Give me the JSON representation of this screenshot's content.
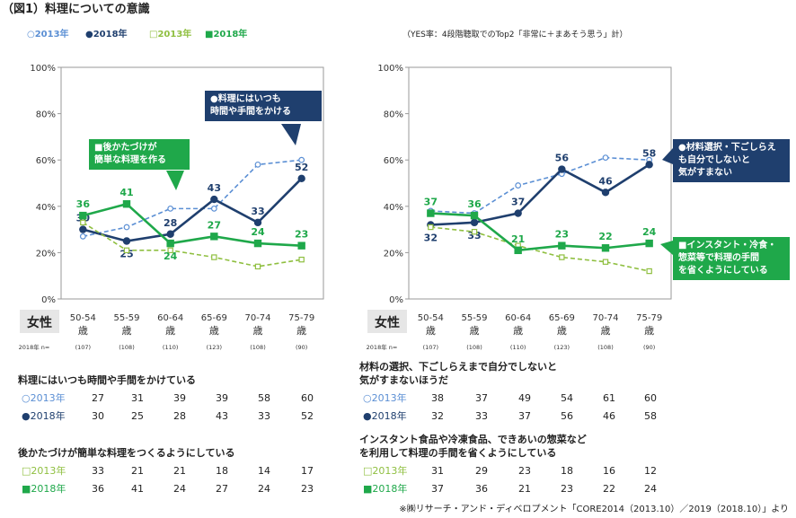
{
  "figure_title": "（図1）料理についての意識",
  "note_right": "（YES率：4段階聴取でのTop2「非常に＋まあそう思う」計）",
  "legend": [
    {
      "label": "○2013年",
      "color": "#5b8fd4",
      "style": "dashed-open"
    },
    {
      "label": "●2018年",
      "color": "#1f3f6e",
      "style": "solid-filled"
    },
    {
      "label": "□2013年",
      "color": "#8fbf40",
      "style": "dashed-open"
    },
    {
      "label": "■2018年",
      "color": "#1fa84a",
      "style": "solid-filled"
    }
  ],
  "colors": {
    "blue13": "#5b8fd4",
    "navy18": "#1f3f6e",
    "lime13": "#8fbf40",
    "green18": "#1fa84a"
  },
  "row_label": "女性",
  "n_label": "2018年 n=",
  "chart_data": [
    {
      "type": "line",
      "categories": [
        "50-54\n歳",
        "55-59\n歳",
        "60-64\n歳",
        "65-69\n歳",
        "70-74\n歳",
        "75-79\n歳"
      ],
      "n": [
        "(107)",
        "(108)",
        "(110)",
        "(123)",
        "(108)",
        "(90)"
      ],
      "ylim": [
        0,
        100
      ],
      "yticks": [
        "0%",
        "20%",
        "40%",
        "60%",
        "80%",
        "100%"
      ],
      "series": [
        {
          "name": "料理にはいつも時間や手間をかけている 2013年",
          "values": [
            27,
            31,
            39,
            39,
            58,
            60
          ]
        },
        {
          "name": "料理にはいつも時間や手間をかけている 2018年",
          "values": [
            30,
            25,
            28,
            43,
            33,
            52
          ]
        },
        {
          "name": "後かたづけが簡単な料理をつくるようにしている 2013年",
          "values": [
            33,
            21,
            21,
            18,
            14,
            17
          ]
        },
        {
          "name": "後かたづけが簡単な料理をつくるようにしている 2018年",
          "values": [
            36,
            41,
            24,
            27,
            24,
            23
          ]
        }
      ],
      "callouts": [
        {
          "text": "●料理にはいつも\n時間や手間をかける",
          "color": "navy"
        },
        {
          "text": "■後かたづけが\n簡単な料理を作る",
          "color": "green"
        }
      ]
    },
    {
      "type": "line",
      "categories": [
        "50-54\n歳",
        "55-59\n歳",
        "60-64\n歳",
        "65-69\n歳",
        "70-74\n歳",
        "75-79\n歳"
      ],
      "n": [
        "(107)",
        "(108)",
        "(110)",
        "(123)",
        "(108)",
        "(90)"
      ],
      "ylim": [
        0,
        100
      ],
      "yticks": [
        "0%",
        "20%",
        "40%",
        "60%",
        "80%",
        "100%"
      ],
      "series": [
        {
          "name": "材料の選択、下ごしらえまで自分でしないと気がすまないほうだ 2013年",
          "values": [
            38,
            37,
            49,
            54,
            61,
            60
          ]
        },
        {
          "name": "材料の選択、下ごしらえまで自分でしないと気がすまないほうだ 2018年",
          "values": [
            32,
            33,
            37,
            56,
            46,
            58
          ]
        },
        {
          "name": "インスタント食品や冷凍食品、できあいの惣菜などを利用して料理の手間を省くようにしている 2013年",
          "values": [
            31,
            29,
            23,
            18,
            16,
            12
          ]
        },
        {
          "name": "インスタント食品や冷凍食品、できあいの惣菜などを利用して料理の手間を省くようにしている 2018年",
          "values": [
            37,
            36,
            21,
            23,
            22,
            24
          ]
        }
      ],
      "callouts": [
        {
          "text": "●材料選択・下ごしらえ\nも自分でしないと\n気がすまない",
          "color": "navy"
        },
        {
          "text": "■インスタント・冷食・\n惣菜等で料理の手間\nを省くようにしている",
          "color": "green"
        }
      ]
    }
  ],
  "tables": [
    {
      "title": "料理にはいつも時間や手間をかけている",
      "rows": [
        {
          "label": "○2013年",
          "values": [
            "27",
            "31",
            "39",
            "39",
            "58",
            "60"
          ]
        },
        {
          "label": "●2018年",
          "values": [
            "30",
            "25",
            "28",
            "43",
            "33",
            "52"
          ]
        }
      ]
    },
    {
      "title": "後かたづけが簡単な料理をつくるようにしている",
      "rows": [
        {
          "label": "□2013年",
          "values": [
            "33",
            "21",
            "21",
            "18",
            "14",
            "17"
          ]
        },
        {
          "label": "■2018年",
          "values": [
            "36",
            "41",
            "24",
            "27",
            "24",
            "23"
          ]
        }
      ]
    },
    {
      "title": "材料の選択、下ごしらえまで自分でしないと\n気がすまないほうだ",
      "rows": [
        {
          "label": "○2013年",
          "values": [
            "38",
            "37",
            "49",
            "54",
            "61",
            "60"
          ]
        },
        {
          "label": "●2018年",
          "values": [
            "32",
            "33",
            "37",
            "56",
            "46",
            "58"
          ]
        }
      ]
    },
    {
      "title": "インスタント食品や冷凍食品、できあいの惣菜など\nを利用して料理の手間を省くようにしている",
      "rows": [
        {
          "label": "□2013年",
          "values": [
            "31",
            "29",
            "23",
            "18",
            "16",
            "12"
          ]
        },
        {
          "label": "■2018年",
          "values": [
            "37",
            "36",
            "21",
            "23",
            "22",
            "24"
          ]
        }
      ]
    }
  ],
  "source": "※㈱リサーチ・アンド・ディベロプメント「CORE2014（2013.10）／2019（2018.10）」より"
}
